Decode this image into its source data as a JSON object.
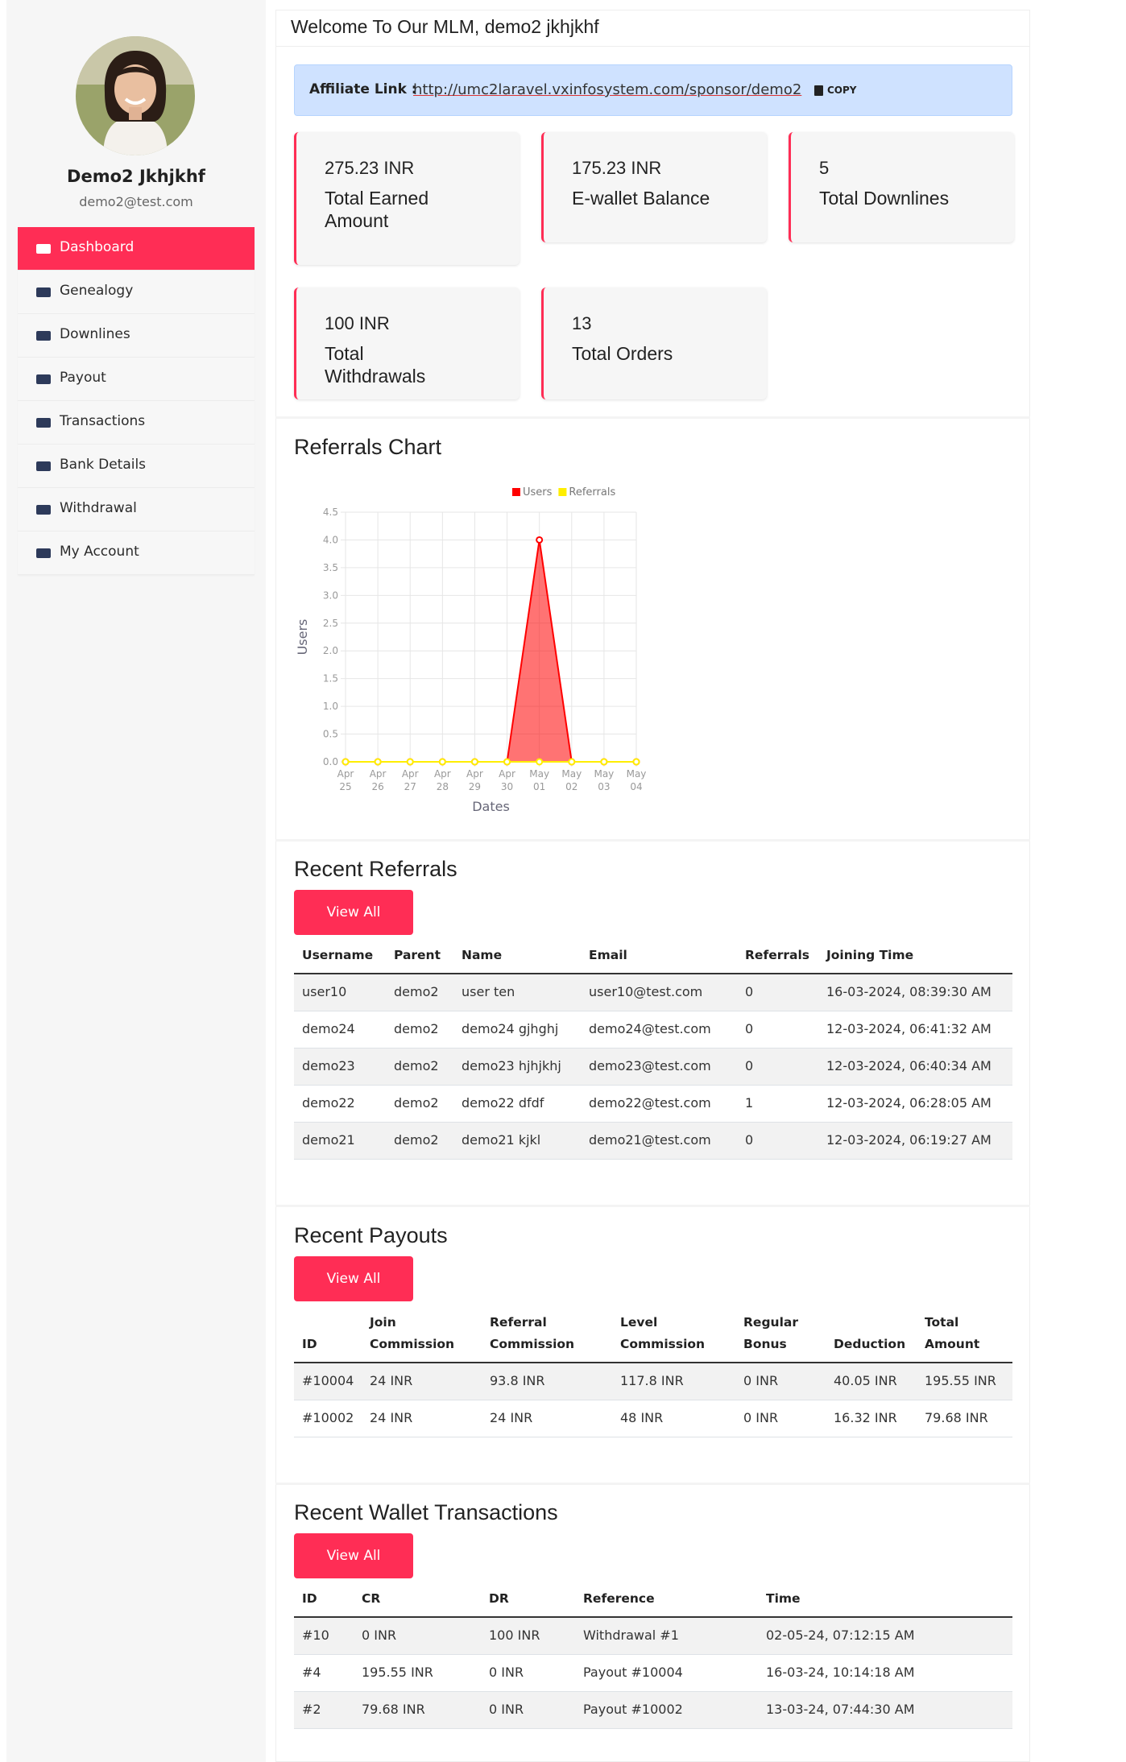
{
  "sidebar": {
    "profile": {
      "name": "Demo2 Jkhjkhf",
      "email": "demo2@test.com"
    },
    "menu": [
      {
        "label": "Dashboard",
        "active": true
      },
      {
        "label": "Genealogy"
      },
      {
        "label": "Downlines"
      },
      {
        "label": "Payout"
      },
      {
        "label": "Transactions"
      },
      {
        "label": "Bank Details"
      },
      {
        "label": "Withdrawal"
      },
      {
        "label": "My Account"
      }
    ]
  },
  "header": {
    "title": "Welcome To Our MLM, demo2 jkhjkhf"
  },
  "affiliate": {
    "label": "Affiliate Link :",
    "url": "http://umc2laravel.vxinfosystem.com/sponsor/demo2",
    "button": "COPY"
  },
  "stats": [
    {
      "value": "275.23 INR",
      "label": "Total Earned Amount"
    },
    {
      "value": "175.23 INR",
      "label": "E-wallet Balance"
    },
    {
      "value": "5",
      "label": "Total Downlines"
    },
    {
      "value": "100 INR",
      "label": "Total Withdrawals"
    },
    {
      "value": "13",
      "label": "Total Orders"
    }
  ],
  "chart_data": {
    "type": "line",
    "title": "Referrals Chart",
    "xlabel": "Dates",
    "ylabel": "Users",
    "categories": [
      "Apr 25",
      "Apr 26",
      "Apr 27",
      "Apr 28",
      "Apr 29",
      "Apr 30",
      "May 01",
      "May 02",
      "May 03",
      "May 04"
    ],
    "series": [
      {
        "name": "Users",
        "color": "#ff0000",
        "fill": true,
        "values": [
          0,
          0,
          0,
          0,
          0,
          0,
          4,
          0,
          0,
          0
        ]
      },
      {
        "name": "Referrals",
        "color": "#ffee00",
        "fill": false,
        "values": [
          0,
          0,
          0,
          0,
          0,
          0,
          0,
          0,
          0,
          0
        ]
      }
    ],
    "ylim": [
      0,
      4.5
    ],
    "yticks": [
      {
        "value": 0,
        "label": "0.0"
      },
      0.5,
      {
        "value": 1,
        "label": "1.0"
      },
      1.5,
      {
        "value": 2,
        "label": "2.0"
      },
      2.5,
      {
        "value": 3,
        "label": "3.0"
      },
      3.5,
      {
        "value": 4,
        "label": "4.0"
      },
      4.5
    ],
    "grid": true,
    "legend": "top"
  },
  "recent_referrals": {
    "title": "Recent Referrals",
    "button": "View All",
    "columns": [
      "Username",
      "Parent",
      "Name",
      "Email",
      "Referrals",
      "Joining Time"
    ],
    "rows": [
      [
        "user10",
        "demo2",
        "user ten",
        "user10@test.com",
        "0",
        "16-03-2024, 08:39:30 AM"
      ],
      [
        "demo24",
        "demo2",
        "demo24 gjhghj",
        "demo24@test.com",
        "0",
        "12-03-2024, 06:41:32 AM"
      ],
      [
        "demo23",
        "demo2",
        "demo23 hjhjkhj",
        "demo23@test.com",
        "0",
        "12-03-2024, 06:40:34 AM"
      ],
      [
        "demo22",
        "demo2",
        "demo22 dfdf",
        "demo22@test.com",
        "1",
        "12-03-2024, 06:28:05 AM"
      ],
      [
        "demo21",
        "demo2",
        "demo21 kjkl",
        "demo21@test.com",
        "0",
        "12-03-2024, 06:19:27 AM"
      ]
    ]
  },
  "recent_payouts": {
    "title": "Recent Payouts",
    "button": "View All",
    "columns": [
      "ID",
      "Join Commission",
      "Referral Commission",
      "Level Commission",
      "Regular Bonus",
      "Deduction",
      "Total Amount"
    ],
    "rows": [
      [
        "#10004",
        "24 INR",
        "93.8 INR",
        "117.8 INR",
        "0 INR",
        "40.05 INR",
        "195.55 INR"
      ],
      [
        "#10002",
        "24 INR",
        "24 INR",
        "48 INR",
        "0 INR",
        "16.32 INR",
        "79.68 INR"
      ]
    ]
  },
  "recent_wallet_transactions": {
    "title": "Recent Wallet Transactions",
    "button": "View All",
    "columns": [
      "ID",
      "CR",
      "DR",
      "Reference",
      "Time"
    ],
    "rows": [
      [
        "#10",
        "0 INR",
        "100 INR",
        "Withdrawal #1",
        "02-05-24, 07:12:15 AM"
      ],
      [
        "#4",
        "195.55 INR",
        "0 INR",
        "Payout #10004",
        "16-03-24, 10:14:18 AM"
      ],
      [
        "#2",
        "79.68 INR",
        "0 INR",
        "Payout #10002",
        "13-03-24, 07:44:30 AM"
      ]
    ]
  }
}
